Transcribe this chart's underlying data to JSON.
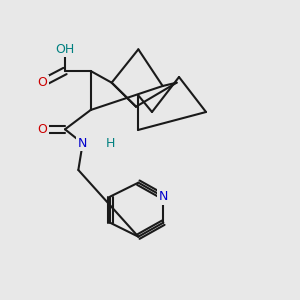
{
  "bg_color": "#e8e8e8",
  "bond_color": "#1a1a1a",
  "bond_lw": 1.5,
  "atom_colors": {
    "O": "#cc0000",
    "N": "#0000cc",
    "H_on_N": "#008080",
    "H_on_O": "#008080",
    "C": "#1a1a1a"
  },
  "font_size": 8.5
}
